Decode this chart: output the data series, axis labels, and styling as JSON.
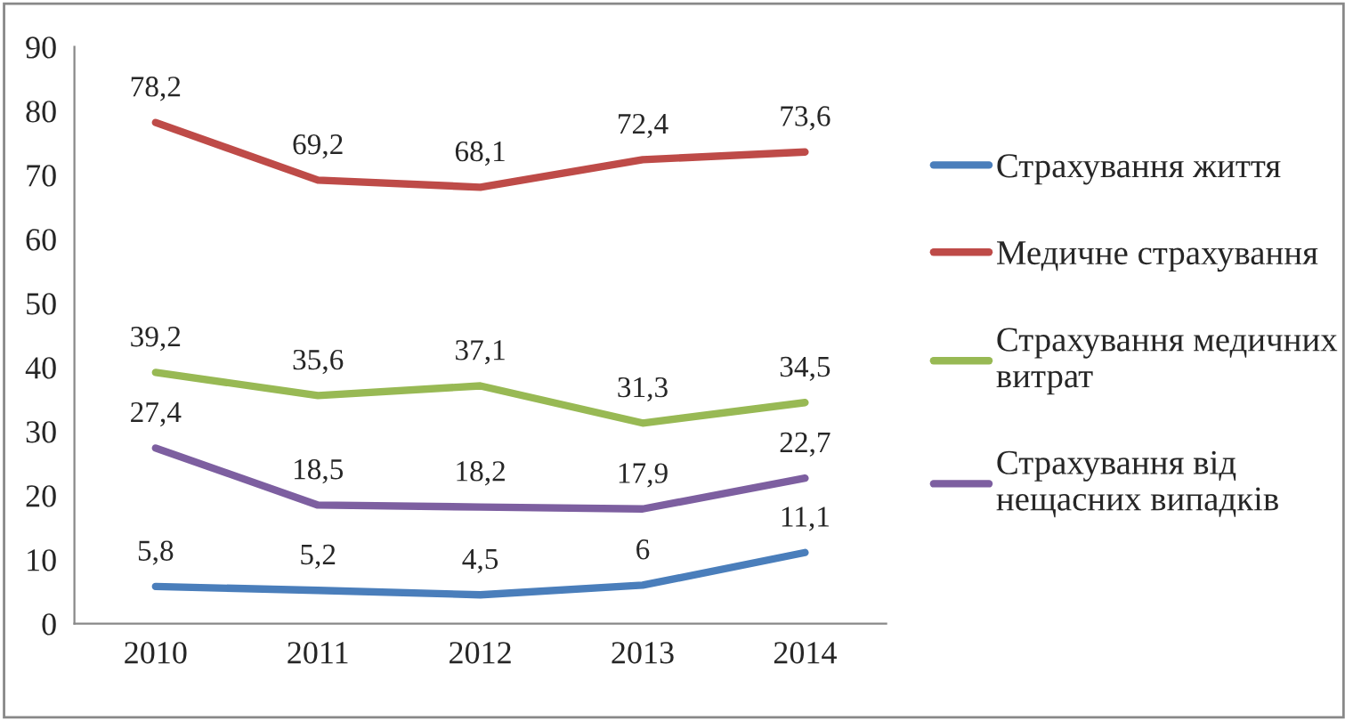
{
  "chart_data": {
    "type": "line",
    "categories": [
      "2010",
      "2011",
      "2012",
      "2013",
      "2014"
    ],
    "series": [
      {
        "name": "Страхування життя",
        "color": "#4a7ebb",
        "values": [
          5.8,
          5.2,
          4.5,
          6,
          11.1
        ],
        "value_labels": [
          "5,8",
          "5,2",
          "4,5",
          "6",
          "11,1"
        ]
      },
      {
        "name": "Медичне страхування",
        "color": "#be4b48",
        "values": [
          78.2,
          69.2,
          68.1,
          72.4,
          73.6
        ],
        "value_labels": [
          "78,2",
          "69,2",
          "68,1",
          "72,4",
          "73,6"
        ]
      },
      {
        "name": "Страхування медичних витрат",
        "color": "#98b954",
        "values": [
          39.2,
          35.6,
          37.1,
          31.3,
          34.5
        ],
        "value_labels": [
          "39,2",
          "35,6",
          "37,1",
          "31,3",
          "34,5"
        ]
      },
      {
        "name": "Страхування від нещасних випадків",
        "color": "#7d5fa0",
        "values": [
          27.4,
          18.5,
          18.2,
          17.9,
          22.7
        ],
        "value_labels": [
          "27,4",
          "18,5",
          "18,2",
          "17,9",
          "22,7"
        ]
      }
    ],
    "ylim": [
      0,
      90
    ],
    "yticks": [
      0,
      10,
      20,
      30,
      40,
      50,
      60,
      70,
      80,
      90
    ],
    "grid": false,
    "legend": "right",
    "marker": "none",
    "line_style": "solid"
  }
}
